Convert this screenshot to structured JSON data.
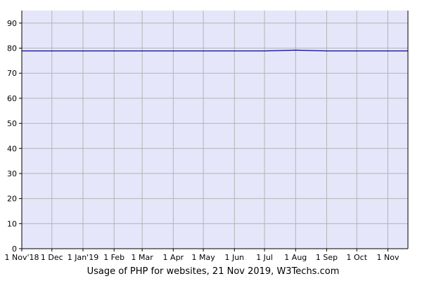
{
  "chart_data": {
    "type": "line",
    "title": "Usage of PHP for websites, 21 Nov 2019, W3Techs.com",
    "xlabel": "",
    "ylabel": "",
    "ylim": [
      0,
      95
    ],
    "yticks": [
      0,
      10,
      20,
      30,
      40,
      50,
      60,
      70,
      80,
      90
    ],
    "x_ticks": [
      {
        "date": "2018-11-01",
        "label": "1 Nov'18"
      },
      {
        "date": "2018-12-01",
        "label": "1 Dec"
      },
      {
        "date": "2019-01-01",
        "label": "1 Jan'19"
      },
      {
        "date": "2019-02-01",
        "label": "1 Feb"
      },
      {
        "date": "2019-03-01",
        "label": "1 Mar"
      },
      {
        "date": "2019-04-01",
        "label": "1 Apr"
      },
      {
        "date": "2019-05-01",
        "label": "1 May"
      },
      {
        "date": "2019-06-01",
        "label": "1 Jun"
      },
      {
        "date": "2019-07-01",
        "label": "1 Jul"
      },
      {
        "date": "2019-08-01",
        "label": "1 Aug"
      },
      {
        "date": "2019-09-01",
        "label": "1 Sep"
      },
      {
        "date": "2019-10-01",
        "label": "1 Oct"
      },
      {
        "date": "2019-11-01",
        "label": "1 Nov"
      }
    ],
    "xlim": [
      "2018-11-01",
      "2019-11-21"
    ],
    "grid": true,
    "colors": {
      "plot_bg": "#e6e6fa",
      "grid": "#b4b4b4",
      "line": "#0000a0"
    },
    "series": [
      {
        "values": [
          {
            "x": "2018-11-01",
            "y": 78.9
          },
          {
            "x": "2018-12-01",
            "y": 78.9
          },
          {
            "x": "2019-01-01",
            "y": 78.9
          },
          {
            "x": "2019-02-01",
            "y": 78.9
          },
          {
            "x": "2019-03-01",
            "y": 78.9
          },
          {
            "x": "2019-04-01",
            "y": 78.9
          },
          {
            "x": "2019-05-01",
            "y": 78.9
          },
          {
            "x": "2019-06-01",
            "y": 78.9
          },
          {
            "x": "2019-07-01",
            "y": 78.9
          },
          {
            "x": "2019-08-01",
            "y": 79.2
          },
          {
            "x": "2019-09-01",
            "y": 78.9
          },
          {
            "x": "2019-10-01",
            "y": 78.9
          },
          {
            "x": "2019-11-01",
            "y": 78.9
          },
          {
            "x": "2019-11-21",
            "y": 78.9
          }
        ]
      }
    ]
  }
}
